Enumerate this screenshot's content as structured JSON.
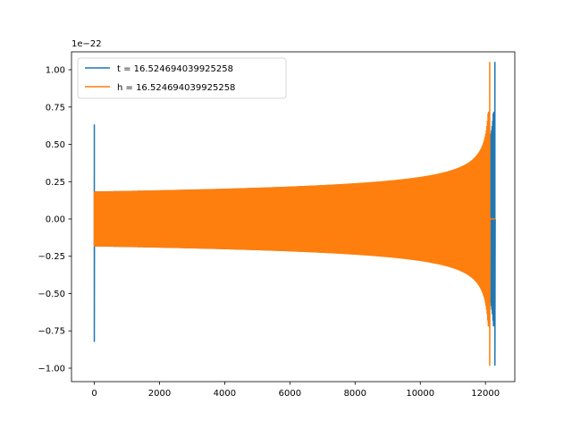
{
  "chart_data": {
    "type": "line",
    "offset_text": "1e−22",
    "xlim": [
      -700,
      12900
    ],
    "ylim": [
      -1.09,
      1.12
    ],
    "x_ticks": [
      0,
      2000,
      4000,
      6000,
      8000,
      10000,
      12000
    ],
    "x_tick_labels": [
      "0",
      "2000",
      "4000",
      "6000",
      "8000",
      "10000",
      "12000"
    ],
    "y_ticks": [
      -1.0,
      -0.75,
      -0.5,
      -0.25,
      0.0,
      0.25,
      0.5,
      0.75,
      1.0
    ],
    "y_tick_labels": [
      "−1.00",
      "−0.75",
      "−0.50",
      "−0.25",
      "0.00",
      "0.25",
      "0.50",
      "0.75",
      "1.00"
    ],
    "legend_position": "upper-left",
    "series": [
      {
        "name": "t = 16.524694039925258",
        "color": "#1f77b4",
        "start_spike": {
          "x": 0,
          "max": 0.63,
          "min": -0.82
        },
        "envelope_start": 0.18,
        "chirp_end_x": 12290,
        "end_spike": {
          "max": 1.05,
          "min": -0.98
        },
        "tail_to_x": 12300
      },
      {
        "name": "h = 16.524694039925258",
        "color": "#ff7f0e",
        "start_spike": {
          "x": 0,
          "max": 0.18,
          "min": -0.18
        },
        "envelope_start": 0.18,
        "chirp_end_x": 12130,
        "end_spike": {
          "max": 1.05,
          "min": -0.98
        },
        "tail_to_x": 12300
      }
    ]
  }
}
